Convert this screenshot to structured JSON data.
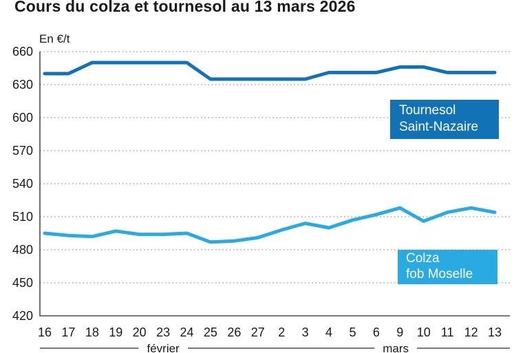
{
  "title": "Cours du colza et tournesol au 13 mars 2026",
  "chart_data": {
    "type": "line",
    "title": "Cours du colza et tournesol au 13 mars 2026",
    "ylabel": "En €/t",
    "ylim": [
      420,
      660
    ],
    "ytick_step": 30,
    "yticks": [
      660,
      630,
      600,
      570,
      540,
      510,
      480,
      450,
      420
    ],
    "grid": "dotted-horizontal",
    "legend_position": "inside-right-boxes",
    "categories": [
      "16",
      "17",
      "18",
      "19",
      "20",
      "23",
      "24",
      "25",
      "26",
      "27",
      "2",
      "3",
      "4",
      "5",
      "6",
      "9",
      "10",
      "11",
      "12",
      "13"
    ],
    "months": [
      {
        "label": "février",
        "start_index": 0,
        "end_index": 9
      },
      {
        "label": "mars",
        "start_index": 10,
        "end_index": 19
      }
    ],
    "series": [
      {
        "name": "Tournesol Saint-Nazaire",
        "legend_lines": [
          "Tournesol",
          "Saint-Nazaire"
        ],
        "color": "#1173b5",
        "values": [
          640,
          640,
          650,
          650,
          650,
          650,
          650,
          635,
          635,
          635,
          635,
          635,
          641,
          641,
          641,
          646,
          646,
          641,
          641,
          641
        ]
      },
      {
        "name": "Colza fob Moselle",
        "legend_lines": [
          "Colza",
          "fob Moselle"
        ],
        "color": "#29abe2",
        "values": [
          495,
          493,
          492,
          497,
          494,
          494,
          495,
          487,
          488,
          491,
          498,
          504,
          500,
          507,
          512,
          518,
          506,
          514,
          518,
          514
        ]
      }
    ],
    "axis_color": "#4d4d4d",
    "grid_color": "#b0b0b0",
    "text_color": "#1a1a1a"
  }
}
